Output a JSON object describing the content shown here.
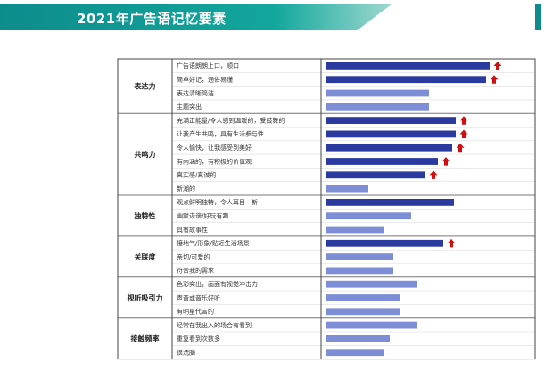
{
  "page": {
    "title": "2021年广告语记忆要素"
  },
  "chart_data": {
    "type": "bar",
    "orientation": "horizontal",
    "xlim": [
      0,
      100
    ],
    "colors": {
      "high": "#2b3a9e",
      "low": "#7d8ed6",
      "arrow": "#d01010"
    },
    "groups": [
      {
        "name": "表达力",
        "items": [
          {
            "label": "广告语朗朗上口，顺口",
            "value": 92,
            "highlight": true,
            "arrow": true
          },
          {
            "label": "简单好记，通俗易懂",
            "value": 90,
            "highlight": true,
            "arrow": true
          },
          {
            "label": "表达清晰简洁",
            "value": 58,
            "highlight": false,
            "arrow": false
          },
          {
            "label": "主题突出",
            "value": 58,
            "highlight": false,
            "arrow": false
          }
        ]
      },
      {
        "name": "共鸣力",
        "items": [
          {
            "label": "充满正能量/令人感到温暖的，受鼓舞的",
            "value": 73,
            "highlight": true,
            "arrow": true
          },
          {
            "label": "让我产生共鸣，具有生活参与性",
            "value": 73,
            "highlight": true,
            "arrow": true
          },
          {
            "label": "令人愉快，让我感受到美好",
            "value": 71,
            "highlight": true,
            "arrow": true
          },
          {
            "label": "有内涵的，有积极的价值观",
            "value": 63,
            "highlight": true,
            "arrow": true
          },
          {
            "label": "真实感/真诚的",
            "value": 56,
            "highlight": true,
            "arrow": true
          },
          {
            "label": "新潮的",
            "value": 24,
            "highlight": false,
            "arrow": false
          }
        ]
      },
      {
        "name": "独特性",
        "items": [
          {
            "label": "观点鲜明独特，令人耳目一新",
            "value": 72,
            "highlight": true,
            "arrow": false
          },
          {
            "label": "幽默诙谐/好玩有趣",
            "value": 48,
            "highlight": false,
            "arrow": false
          },
          {
            "label": "具有故事性",
            "value": 33,
            "highlight": false,
            "arrow": false
          }
        ]
      },
      {
        "name": "关联度",
        "items": [
          {
            "label": "接地气/形象/贴近生活场景",
            "value": 66,
            "highlight": true,
            "arrow": true
          },
          {
            "label": "亲切/可爱的",
            "value": 38,
            "highlight": false,
            "arrow": false
          },
          {
            "label": "符合我的需求",
            "value": 38,
            "highlight": false,
            "arrow": false
          }
        ]
      },
      {
        "name": "视听吸引力",
        "items": [
          {
            "label": "色彩突出，画面有视觉冲击力",
            "value": 51,
            "highlight": false,
            "arrow": false
          },
          {
            "label": "声音或音乐好听",
            "value": 42,
            "highlight": false,
            "arrow": false
          },
          {
            "label": "有明星代言的",
            "value": 42,
            "highlight": false,
            "arrow": false
          }
        ]
      },
      {
        "name": "接触频率",
        "items": [
          {
            "label": "经常在我出入的场合有看到",
            "value": 51,
            "highlight": false,
            "arrow": false
          },
          {
            "label": "重复看到次数多",
            "value": 36,
            "highlight": false,
            "arrow": false
          },
          {
            "label": "很洗脑",
            "value": 33,
            "highlight": false,
            "arrow": false
          }
        ]
      }
    ]
  }
}
